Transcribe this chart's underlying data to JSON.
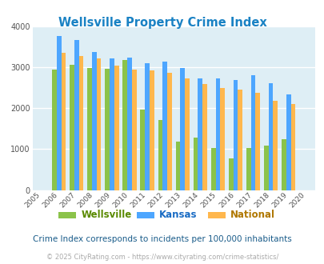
{
  "title": "Wellsville Property Crime Index",
  "years": [
    2005,
    2006,
    2007,
    2008,
    2009,
    2010,
    2011,
    2012,
    2013,
    2014,
    2015,
    2016,
    2017,
    2018,
    2019,
    2020
  ],
  "wellsville": [
    null,
    2950,
    3060,
    2990,
    2970,
    3180,
    1960,
    1720,
    1180,
    1280,
    1030,
    775,
    1030,
    1080,
    1250,
    null
  ],
  "kansas": [
    null,
    3760,
    3660,
    3380,
    3210,
    3230,
    3100,
    3140,
    2980,
    2720,
    2720,
    2690,
    2800,
    2620,
    2330,
    null
  ],
  "national": [
    null,
    3360,
    3280,
    3210,
    3040,
    2950,
    2920,
    2860,
    2720,
    2590,
    2500,
    2460,
    2380,
    2180,
    2100,
    null
  ],
  "wellsville_color": "#8bc34a",
  "kansas_color": "#4da6ff",
  "national_color": "#ffb74d",
  "bg_color": "#deeef5",
  "title_color": "#1a82c4",
  "ylim": [
    0,
    4000
  ],
  "yticks": [
    0,
    1000,
    2000,
    3000,
    4000
  ],
  "footnote": "Crime Index corresponds to incidents per 100,000 inhabitants",
  "copyright": "© 2025 CityRating.com - https://www.cityrating.com/crime-statistics/",
  "legend_labels": [
    "Wellsville",
    "Kansas",
    "National"
  ],
  "legend_text_colors": [
    "#5a8a00",
    "#1a6cc4",
    "#b07800"
  ],
  "bar_width": 0.26
}
